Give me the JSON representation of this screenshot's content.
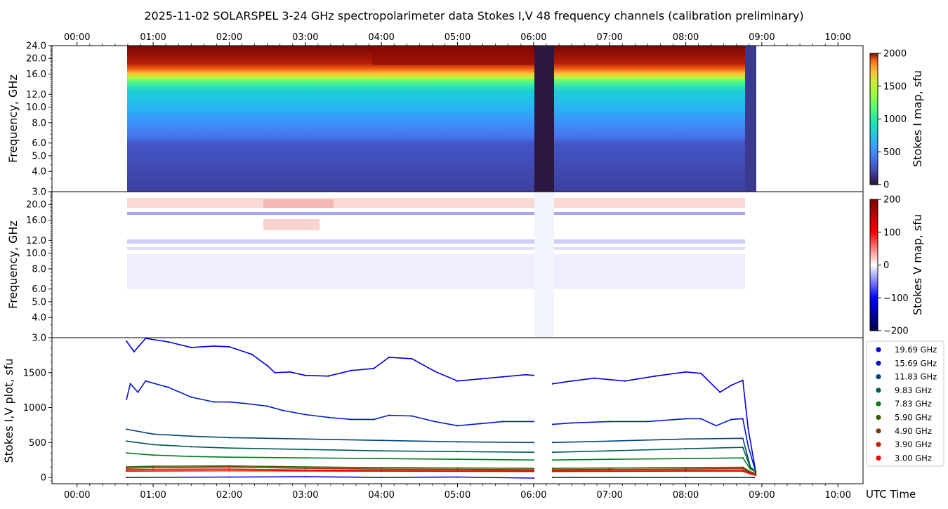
{
  "title": "2025-11-02  SOLARSPEL  3-24 GHz spectropolarimeter data   Stokes I,V   48 frequency channels   (calibration preliminary)",
  "time_ticks": [
    "00:00",
    "01:00",
    "02:00",
    "03:00",
    "04:00",
    "05:00",
    "06:00",
    "07:00",
    "08:00",
    "09:00",
    "10:00"
  ],
  "x_axis_label": "UTC Time",
  "chart_data": [
    {
      "type": "heatmap",
      "ylabel": "Frequency, GHz",
      "colorbar_label": "Stokes I map, sfu",
      "colorbar_ticks": [
        "0",
        "500",
        "1000",
        "1500",
        "2000"
      ],
      "colorbar_range": [
        0,
        2000
      ],
      "colormap": "turbo",
      "y_ticks": [
        "3.0",
        "4.0",
        "5.0",
        "6.0",
        "8.0",
        "10.0",
        "12.0",
        "16.0",
        "20.0",
        "24.0"
      ],
      "y_range_ghz": [
        3.0,
        24.0
      ],
      "x_range_hours": [
        -0.33,
        10.33
      ],
      "data_start_hour": 0.65,
      "data_end_hour": 8.92,
      "gap_hours": [
        6.0,
        6.25
      ]
    },
    {
      "type": "heatmap",
      "ylabel": "Frequency, GHz",
      "colorbar_label": "Stokes V map, sfu",
      "colorbar_ticks": [
        "200",
        "100",
        "0",
        "−100",
        "−200"
      ],
      "colorbar_range": [
        -200,
        200
      ],
      "colormap": "seismic",
      "y_ticks": [
        "3.0",
        "4.0",
        "5.0",
        "6.0",
        "8.0",
        "10.0",
        "12.0",
        "16.0",
        "20.0"
      ]
    },
    {
      "type": "line",
      "ylabel": "Stokes I,V plot, sfu",
      "y_ticks": [
        "0",
        "500",
        "1000",
        "1500"
      ],
      "ylim": [
        -90,
        2000
      ],
      "series": [
        {
          "name": "19.69 GHz",
          "color": "#0000e0",
          "x": [
            0.65,
            0.75,
            0.9,
            1.2,
            1.5,
            1.8,
            2.0,
            2.3,
            2.5,
            2.6,
            2.8,
            3.0,
            3.3,
            3.6,
            3.9,
            4.1,
            4.4,
            4.7,
            5.0,
            5.3,
            5.6,
            5.9,
            6.0,
            6.25,
            6.5,
            6.8,
            7.2,
            7.6,
            8.0,
            8.2,
            8.45,
            8.6,
            8.75,
            8.82,
            8.92
          ],
          "y": [
            1950,
            1800,
            1990,
            1940,
            1860,
            1880,
            1870,
            1760,
            1600,
            1500,
            1510,
            1460,
            1450,
            1530,
            1560,
            1720,
            1700,
            1520,
            1380,
            1410,
            1440,
            1470,
            1460,
            1340,
            1380,
            1420,
            1380,
            1450,
            1510,
            1490,
            1220,
            1320,
            1390,
            700,
            80
          ]
        },
        {
          "name": "15.69 GHz",
          "color": "#0018c8",
          "x": [
            0.65,
            0.7,
            0.8,
            0.9,
            1.2,
            1.5,
            1.8,
            2.0,
            2.2,
            2.5,
            2.7,
            3.0,
            3.3,
            3.6,
            3.9,
            4.1,
            4.4,
            4.7,
            5.0,
            5.3,
            5.6,
            6.0,
            6.25,
            6.5,
            7.0,
            7.5,
            8.0,
            8.2,
            8.4,
            8.6,
            8.75,
            8.82,
            8.92
          ],
          "y": [
            1120,
            1340,
            1220,
            1380,
            1290,
            1150,
            1080,
            1080,
            1060,
            1020,
            960,
            900,
            860,
            830,
            830,
            890,
            880,
            800,
            740,
            770,
            800,
            800,
            760,
            780,
            800,
            800,
            840,
            840,
            740,
            830,
            840,
            450,
            80
          ]
        },
        {
          "name": "11.83 GHz",
          "color": "#00447a",
          "x": [
            0.65,
            1.0,
            1.5,
            2.0,
            3.0,
            4.0,
            5.0,
            6.0,
            6.25,
            7.0,
            8.0,
            8.75,
            8.85,
            8.92
          ],
          "y": [
            690,
            620,
            590,
            570,
            550,
            530,
            510,
            500,
            500,
            520,
            550,
            560,
            150,
            80
          ]
        },
        {
          "name": "9.83 GHz",
          "color": "#005a50",
          "x": [
            0.65,
            1.0,
            1.5,
            2.0,
            3.0,
            4.0,
            5.0,
            6.0,
            6.25,
            7.0,
            8.0,
            8.75,
            8.85,
            8.92
          ],
          "y": [
            520,
            470,
            440,
            420,
            400,
            380,
            370,
            360,
            360,
            380,
            410,
            430,
            140,
            80
          ]
        },
        {
          "name": "7.83 GHz",
          "color": "#007a1e",
          "x": [
            0.65,
            1.0,
            1.5,
            2.0,
            3.0,
            4.0,
            5.0,
            6.0,
            6.25,
            7.0,
            8.0,
            8.75,
            8.85,
            8.92
          ],
          "y": [
            350,
            320,
            300,
            290,
            280,
            270,
            260,
            250,
            250,
            260,
            270,
            280,
            120,
            80
          ]
        },
        {
          "name": "5.90 GHz",
          "color": "#3d5a00",
          "x": [
            0.65,
            1.0,
            2.0,
            3.0,
            4.0,
            5.0,
            6.0,
            6.25,
            7.0,
            8.0,
            8.75,
            8.85,
            8.92
          ],
          "y": [
            150,
            160,
            165,
            150,
            140,
            135,
            130,
            130,
            135,
            140,
            145,
            80,
            60
          ]
        },
        {
          "name": "4.90 GHz",
          "color": "#7a3c00",
          "x": [
            0.65,
            1.0,
            2.0,
            3.0,
            4.0,
            5.0,
            6.0,
            6.25,
            7.0,
            8.0,
            8.75,
            8.85,
            8.92
          ],
          "y": [
            130,
            140,
            150,
            130,
            120,
            115,
            110,
            110,
            115,
            120,
            125,
            70,
            50
          ]
        },
        {
          "name": "3.90 GHz",
          "color": "#c81e00",
          "x": [
            0.65,
            1.0,
            2.0,
            3.0,
            4.0,
            5.0,
            6.0,
            6.25,
            7.0,
            8.0,
            8.75,
            8.85,
            8.92
          ],
          "y": [
            110,
            115,
            120,
            105,
            100,
            95,
            95,
            95,
            95,
            100,
            100,
            60,
            40
          ]
        },
        {
          "name": "3.00 GHz",
          "color": "#ff0000",
          "x": [
            0.65,
            2.0,
            4.0,
            6.0,
            6.25,
            8.0,
            8.75,
            8.85,
            8.92
          ],
          "y": [
            90,
            95,
            90,
            85,
            85,
            90,
            90,
            50,
            30
          ]
        },
        {
          "name": "",
          "color": "#0000e0",
          "x": [
            0.65,
            2.0,
            3.0,
            4.0,
            5.0,
            6.0,
            6.25,
            8.0,
            8.9
          ],
          "y": [
            0,
            5,
            10,
            0,
            5,
            -10,
            0,
            0,
            0
          ]
        }
      ]
    }
  ]
}
